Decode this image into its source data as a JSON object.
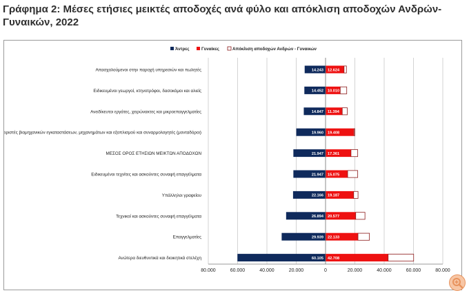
{
  "title": "Γράφημα 2: Μέσες ετήσιες μεικτές αποδοχές ανά φύλο και απόκλιση αποδοχών Ανδρών-Γυναικών, 2022",
  "colors": {
    "men": "#0f2a5c",
    "women": "#ee1111",
    "gap_border": "#8b1a1a",
    "grid": "#c8c8c8"
  },
  "icons": {
    "zoom": "zoom-in-icon"
  },
  "chart_data": {
    "type": "bar",
    "orientation": "horizontal-butterfly",
    "legend": {
      "position": "top-right",
      "entries": [
        "Άντρες",
        "Γυναίκες",
        "Απόκλιση  αποδοχών Ανδρών - Γυναικών"
      ]
    },
    "xlim": [
      -80000,
      80000
    ],
    "x_ticks": [
      -80000,
      -60000,
      -40000,
      -20000,
      0,
      20000,
      40000,
      60000,
      80000
    ],
    "x_tick_labels": [
      "80.000",
      "60.000",
      "40.000",
      "20.000",
      "0",
      "20.000",
      "40.000",
      "60.000",
      "80.000"
    ],
    "grid": true,
    "categories": [
      "Απασχολούμενοι στην παροχή υπηρεσιών και πωλητές",
      "Ειδικευμένοι γεωργοί, κτηνοτρόφοι, δασοκόμοι και αλιείς",
      "Ανειδίκευτοι εργάτες, χειρώνακτες και μικροεπαγγελματίες",
      "Χειριστές βιομηχανικών εγκαταστάσεων, μηχανημάτων και εξοπλισμού και συναρμολογητές (μονταδόροι)",
      "ΜΕΣΟΣ ΟΡΟΣ ΕΤΗΣΙΩΝ ΜΕΙΚΤΩΝ ΑΠΟΔΟΧΩΝ",
      "Ειδικευμένοι τεχνίτες και ασκούντες συναφή επαγγέλματα",
      "Υπάλληλοι γραφείου",
      "Τεχνικοί και ασκούντες συναφή επαγγέλματα",
      "Επαγγελματίες",
      "Ανώτερα διευθυντικά και διοικητικά στελέχη"
    ],
    "series": [
      {
        "name": "Άντρες",
        "values": [
          14243,
          14452,
          14847,
          19960,
          21947,
          21947,
          22166,
          26894,
          29939,
          60105
        ],
        "labels": [
          "14.243",
          "14.452",
          "14.847",
          "19.960",
          "21.947",
          "21.947",
          "22.166",
          "26.894",
          "29.939",
          "60.105"
        ]
      },
      {
        "name": "Γυναίκες",
        "values": [
          12624,
          10010,
          11394,
          19408,
          17361,
          15075,
          19187,
          20577,
          22133,
          42708
        ],
        "labels": [
          "12.624",
          "10.010",
          "11.394",
          "19.408",
          "17.361",
          "15.075",
          "19.187",
          "20.577",
          "22.133",
          "42.708"
        ]
      },
      {
        "name": "Απόκλιση  αποδοχών Ανδρών - Γυναικών",
        "values": [
          1619,
          4442,
          3453,
          552,
          4586,
          6872,
          2979,
          6317,
          7806,
          17397
        ]
      }
    ]
  }
}
